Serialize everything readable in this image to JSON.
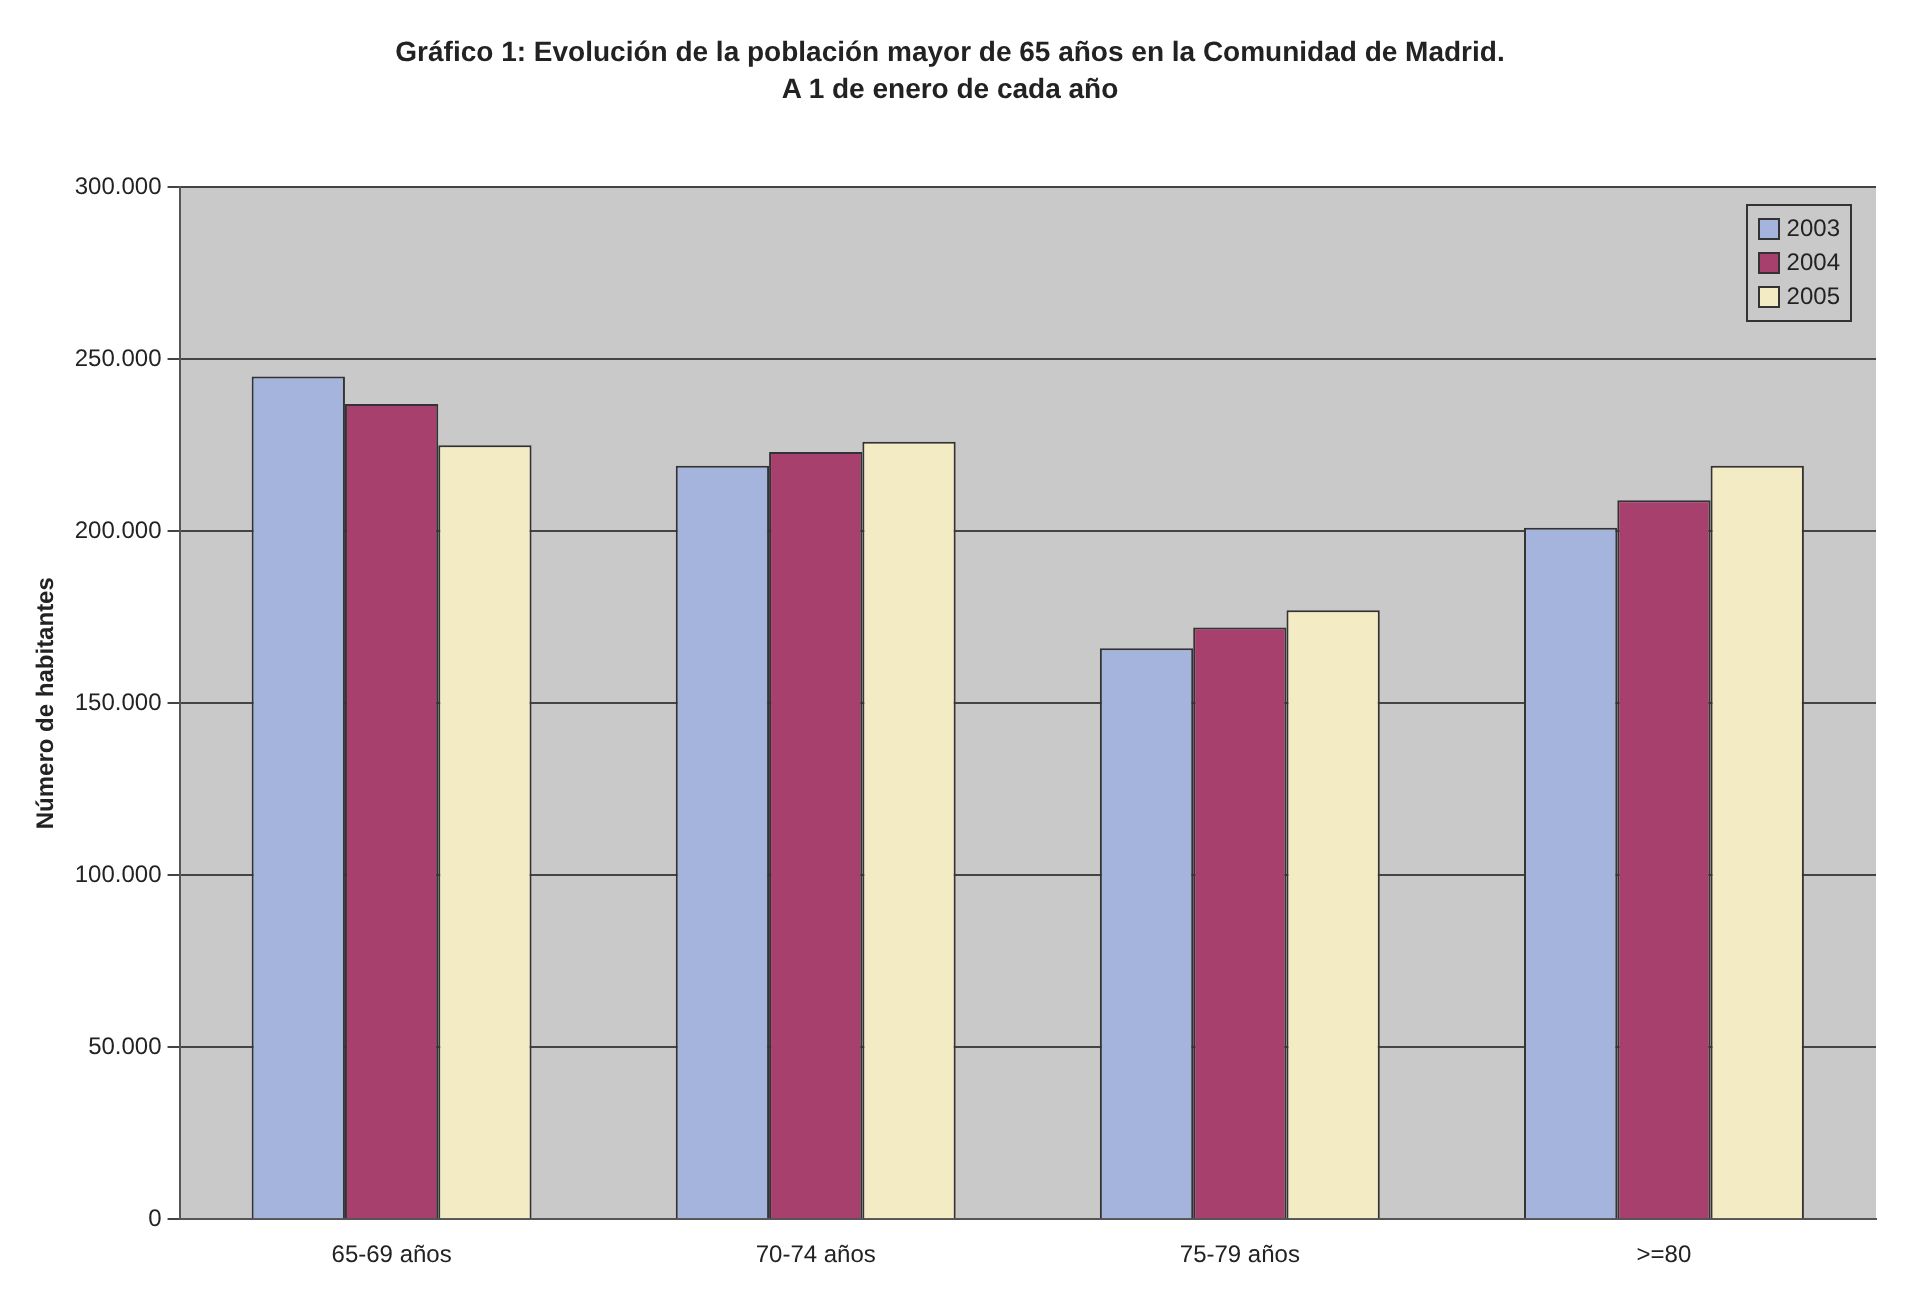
{
  "chart_data": {
    "type": "bar",
    "title": "Gráfico 1: Evolución de la población mayor de 65 años en la Comunidad de Madrid.",
    "subtitle": "A 1 de enero de cada año",
    "ylabel": "Número de habitantes",
    "categories": [
      "65-69 años",
      "70-74 años",
      "75-79 años",
      ">=80"
    ],
    "series": [
      {
        "name": "2003",
        "color": "#a4b4dc",
        "values": [
          245000,
          219000,
          166000,
          201000
        ]
      },
      {
        "name": "2004",
        "color": "#a8406e",
        "values": [
          237000,
          223000,
          172000,
          209000
        ]
      },
      {
        "name": "2005",
        "color": "#f2ebc4",
        "values": [
          225000,
          226000,
          177000,
          219000
        ]
      }
    ],
    "ylim": [
      0,
      300000
    ],
    "yticks": [
      {
        "value": 0,
        "label": "0"
      },
      {
        "value": 50000,
        "label": "50.000"
      },
      {
        "value": 100000,
        "label": "100.000"
      },
      {
        "value": 150000,
        "label": "150.000"
      },
      {
        "value": 200000,
        "label": "200.000"
      },
      {
        "value": 250000,
        "label": "250.000"
      },
      {
        "value": 300000,
        "label": "300.000"
      }
    ],
    "grid": "y",
    "legend": "top right"
  }
}
